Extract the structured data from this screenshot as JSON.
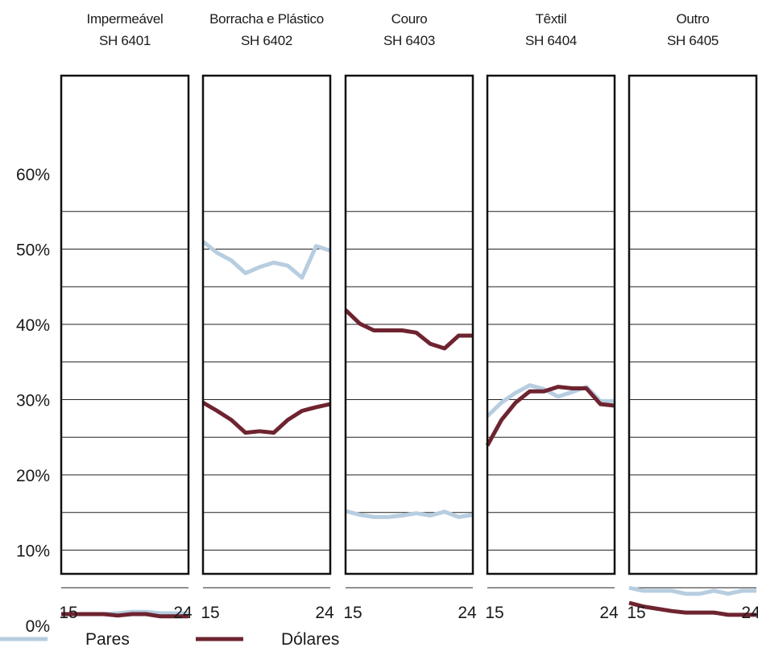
{
  "chart_data": {
    "type": "line",
    "x_start_label": "15",
    "x_end_label": "24",
    "ylim": [
      0,
      60
    ],
    "y_ticks": [
      "0%",
      "10%",
      "20%",
      "30%",
      "40%",
      "50%",
      "60%"
    ],
    "grid": true,
    "legend_position": "bottom-left",
    "colors": {
      "pares": "#b7cde0",
      "dolares": "#6e2430"
    },
    "legend": [
      {
        "key": "pares",
        "label": "Pares"
      },
      {
        "key": "dolares",
        "label": "Dólares"
      }
    ],
    "panels": [
      {
        "title_line1": "Impermeável",
        "title_line2": "SH 6401",
        "series": [
          {
            "key": "pares",
            "values": [
              1.5,
              1.5,
              1.5,
              1.5,
              1.6,
              1.8,
              1.8,
              1.6,
              1.6,
              1.6
            ]
          },
          {
            "key": "dolares",
            "values": [
              1.5,
              1.5,
              1.5,
              1.5,
              1.3,
              1.5,
              1.5,
              1.2,
              1.2,
              1.2
            ]
          }
        ]
      },
      {
        "title_line1": "Borracha e Plástico",
        "title_line2": "SH 6402",
        "series": [
          {
            "key": "pares",
            "values": [
              51,
              49.5,
              48.5,
              46.8,
              47.6,
              48.2,
              47.8,
              46.2,
              50.4,
              49.8
            ]
          },
          {
            "key": "dolares",
            "values": [
              29.6,
              28.5,
              27.3,
              25.6,
              25.8,
              25.6,
              27.3,
              28.5,
              29,
              29.4
            ]
          }
        ]
      },
      {
        "title_line1": "Couro",
        "title_line2": "SH 6403",
        "series": [
          {
            "key": "pares",
            "values": [
              15.2,
              14.7,
              14.4,
              14.4,
              14.6,
              14.9,
              14.6,
              15.1,
              14.4,
              14.7
            ]
          },
          {
            "key": "dolares",
            "values": [
              41.9,
              40.1,
              39.2,
              39.2,
              39.2,
              38.9,
              37.4,
              36.8,
              38.5,
              38.5
            ]
          }
        ]
      },
      {
        "title_line1": "Têxtil",
        "title_line2": "SH 6404",
        "series": [
          {
            "key": "pares",
            "values": [
              27.8,
              29.6,
              30.9,
              31.9,
              31.4,
              30.4,
              31,
              31.7,
              29.8,
              29.8
            ]
          },
          {
            "key": "dolares",
            "values": [
              23.9,
              27.3,
              29.6,
              31.1,
              31.1,
              31.7,
              31.5,
              31.5,
              29.4,
              29.2
            ]
          }
        ]
      },
      {
        "title_line1": "Outro",
        "title_line2": "SH 6405",
        "series": [
          {
            "key": "pares",
            "values": [
              5,
              4.6,
              4.6,
              4.6,
              4.2,
              4.2,
              4.6,
              4.2,
              4.6,
              4.6
            ]
          },
          {
            "key": "dolares",
            "values": [
              3,
              2.5,
              2.2,
              1.9,
              1.7,
              1.7,
              1.7,
              1.4,
              1.4,
              1.4
            ]
          }
        ]
      }
    ]
  }
}
